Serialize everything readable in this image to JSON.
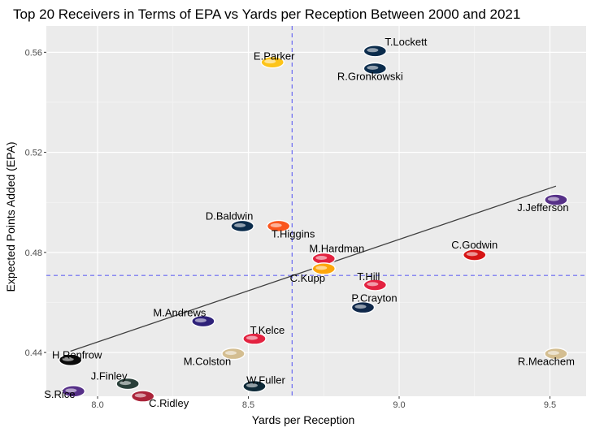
{
  "chart_data": {
    "type": "scatter",
    "title": "Top 20 Receivers in Terms of EPA vs Yards per Reception Between 2000 and 2021",
    "xlabel": "Yards per Reception",
    "ylabel": "Expected Points Added (EPA)",
    "xlim": [
      7.83,
      9.62
    ],
    "ylim": [
      0.4225,
      0.5705
    ],
    "x_ticks": [
      8.0,
      8.5,
      9.0,
      9.5
    ],
    "x_tick_labels": [
      "8.0",
      "8.5",
      "9.0",
      "9.5"
    ],
    "y_ticks": [
      0.44,
      0.48,
      0.52,
      0.56
    ],
    "y_tick_labels": [
      "0.44",
      "0.48",
      "0.52",
      "0.56"
    ],
    "grid": true,
    "reference_lines": {
      "x_mean": 8.645,
      "y_mean": 0.4708
    },
    "trend_line": {
      "x": [
        7.91,
        9.52
      ],
      "y": [
        0.4405,
        0.5065
      ]
    },
    "points": [
      {
        "name": "T.Lockett",
        "x": 8.92,
        "y": 0.5605,
        "team": "Seahawks",
        "color": "#002244"
      },
      {
        "name": "R.Gronkowski",
        "x": 8.92,
        "y": 0.5535,
        "team": "Patriots",
        "color": "#002244"
      },
      {
        "name": "E.Parker",
        "x": 8.58,
        "y": 0.556,
        "team": "Chargers",
        "color": "#ffc20e"
      },
      {
        "name": "D.Baldwin",
        "x": 8.48,
        "y": 0.4905,
        "team": "Seahawks",
        "color": "#002244"
      },
      {
        "name": "T.Higgins",
        "x": 8.6,
        "y": 0.4905,
        "team": "Bengals",
        "color": "#fb4f14"
      },
      {
        "name": "J.Jefferson",
        "x": 9.52,
        "y": 0.501,
        "team": "Vikings",
        "color": "#4f2683"
      },
      {
        "name": "C.Godwin",
        "x": 9.25,
        "y": 0.479,
        "team": "Buccaneers",
        "color": "#d50a0a"
      },
      {
        "name": "M.Hardman",
        "x": 8.75,
        "y": 0.4775,
        "team": "Chiefs",
        "color": "#e31837"
      },
      {
        "name": "C.Kupp",
        "x": 8.75,
        "y": 0.4735,
        "team": "Rams",
        "color": "#ffa300"
      },
      {
        "name": "T.Hill",
        "x": 8.92,
        "y": 0.467,
        "team": "Chiefs",
        "color": "#e31837"
      },
      {
        "name": "P.Crayton",
        "x": 8.88,
        "y": 0.458,
        "team": "Cowboys",
        "color": "#041e42"
      },
      {
        "name": "M.Andrews",
        "x": 8.35,
        "y": 0.4525,
        "team": "Ravens",
        "color": "#241773"
      },
      {
        "name": "T.Kelce",
        "x": 8.52,
        "y": 0.4455,
        "team": "Chiefs",
        "color": "#e31837"
      },
      {
        "name": "M.Colston",
        "x": 8.45,
        "y": 0.4395,
        "team": "Saints",
        "color": "#d3bc8d"
      },
      {
        "name": "R.Meachem",
        "x": 9.52,
        "y": 0.4395,
        "team": "Saints",
        "color": "#d3bc8d"
      },
      {
        "name": "H.Renfrow",
        "x": 7.91,
        "y": 0.437,
        "team": "Raiders",
        "color": "#000000"
      },
      {
        "name": "J.Finley",
        "x": 8.1,
        "y": 0.4275,
        "team": "Packers",
        "color": "#203731"
      },
      {
        "name": "W.Fuller",
        "x": 8.52,
        "y": 0.4265,
        "team": "Texans",
        "color": "#03202f"
      },
      {
        "name": "C.Ridley",
        "x": 8.15,
        "y": 0.4225,
        "team": "Falcons",
        "color": "#a71930"
      },
      {
        "name": "S.Rice",
        "x": 7.92,
        "y": 0.4245,
        "team": "Vikings",
        "color": "#4f2683"
      }
    ]
  }
}
